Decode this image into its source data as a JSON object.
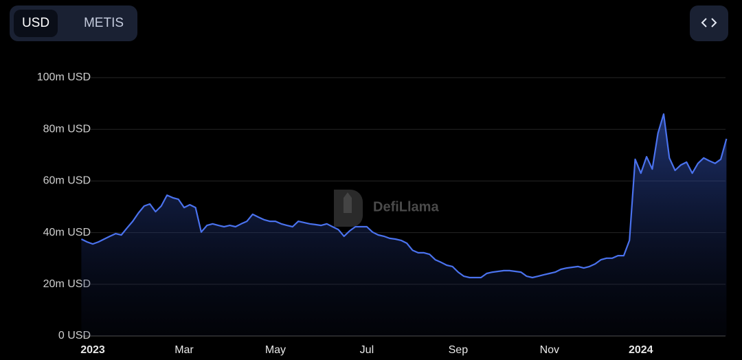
{
  "toggle": [
    "USD",
    "METIS"
  ],
  "watermark": "DefiLlama",
  "chart_data": {
    "type": "line",
    "color": "#4a72ee",
    "grid": true,
    "categories": [
      null,
      null,
      "2023",
      null,
      null,
      null,
      null,
      null,
      null,
      null,
      null,
      null,
      null,
      null,
      null,
      null,
      null,
      null,
      "Mar",
      null,
      null,
      null,
      null,
      null,
      null,
      null,
      null,
      null,
      null,
      null,
      null,
      null,
      null,
      null,
      "May",
      null,
      null,
      null,
      null,
      null,
      null,
      null,
      null,
      null,
      null,
      null,
      null,
      null,
      null,
      null,
      "Jul",
      null,
      null,
      null,
      null,
      null,
      null,
      null,
      null,
      null,
      null,
      null,
      null,
      null,
      null,
      null,
      "Sep",
      null,
      null,
      null,
      null,
      null,
      null,
      null,
      null,
      null,
      null,
      null,
      null,
      null,
      null,
      null,
      "Nov",
      null,
      null,
      null,
      null,
      null,
      null,
      null,
      null,
      null,
      null,
      null,
      null,
      null,
      null,
      null,
      "2024",
      null,
      null,
      null,
      null,
      null,
      null,
      null,
      null,
      null,
      null,
      null,
      null,
      null,
      null,
      null
    ],
    "values": [
      37500000,
      36400000,
      35600000,
      36400000,
      37500000,
      38600000,
      39600000,
      39100000,
      41800000,
      44400000,
      47600000,
      50300000,
      51100000,
      48100000,
      50300000,
      54500000,
      53500000,
      52900000,
      49700000,
      50800000,
      49700000,
      40200000,
      42800000,
      43400000,
      42800000,
      42300000,
      42800000,
      42300000,
      43400000,
      44400000,
      47100000,
      46000000,
      45000000,
      44400000,
      44400000,
      43400000,
      42800000,
      42300000,
      44400000,
      43900000,
      43400000,
      43100000,
      42800000,
      43400000,
      42300000,
      41200000,
      38600000,
      40700000,
      42300000,
      42300000,
      42300000,
      40200000,
      39100000,
      38600000,
      37800000,
      37500000,
      37000000,
      35900000,
      33200000,
      32200000,
      32200000,
      31600000,
      29500000,
      28500000,
      27400000,
      26900000,
      24700000,
      23100000,
      22600000,
      22600000,
      22600000,
      24200000,
      24700000,
      25000000,
      25300000,
      25300000,
      25000000,
      24700000,
      23100000,
      22600000,
      23100000,
      23700000,
      24200000,
      24700000,
      25800000,
      26300000,
      26600000,
      26900000,
      26300000,
      26900000,
      27900000,
      29500000,
      30100000,
      30100000,
      31100000,
      31100000,
      37000000,
      68400000,
      63000000,
      69400000,
      64600000,
      78500000,
      85900000,
      68900000,
      64100000,
      66200000,
      67300000,
      63000000,
      66800000,
      68900000,
      67800000,
      66800000,
      68400000,
      76300000
    ],
    "ylim": [
      0,
      100000000
    ],
    "yticks": [
      {
        "value": 0,
        "label": "0 USD"
      },
      {
        "value": 20000000,
        "label": "20m USD"
      },
      {
        "value": 40000000,
        "label": "40m USD"
      },
      {
        "value": 60000000,
        "label": "60m USD"
      },
      {
        "value": 80000000,
        "label": "80m USD"
      },
      {
        "value": 100000000,
        "label": "100m USD"
      }
    ]
  }
}
